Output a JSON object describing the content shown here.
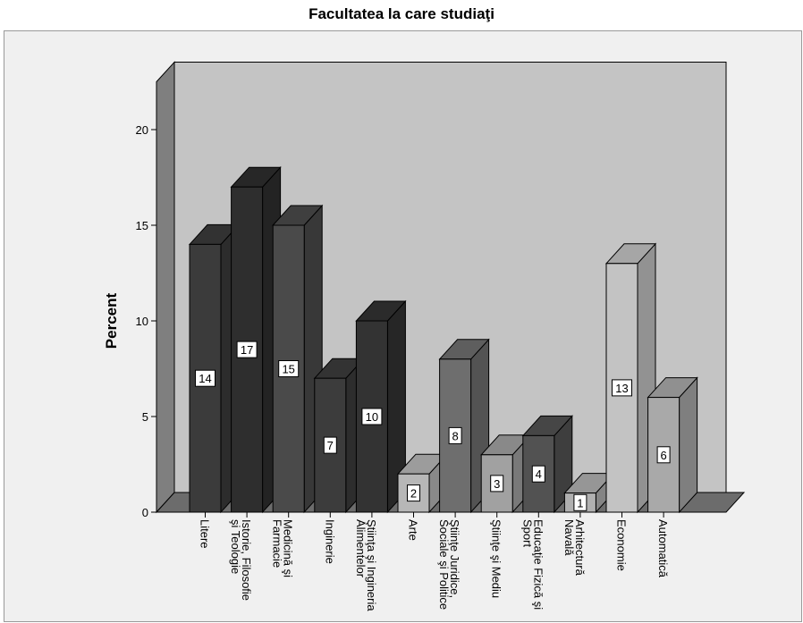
{
  "chart_data": {
    "type": "bar",
    "title": "Facultatea la care studiaţi",
    "xlabel": "",
    "ylabel": "Percent",
    "ylim": [
      0,
      20
    ],
    "yticks": [
      0,
      5,
      10,
      15,
      20
    ],
    "grid": false,
    "legend": "none",
    "categories": [
      [
        "Litere"
      ],
      [
        "Istorie, Filosofie",
        "şi Teologie"
      ],
      [
        "Medicină şi",
        "Farmacie"
      ],
      [
        "Inginerie"
      ],
      [
        "Ştiinţa şi Ingineria",
        "Alimentelor"
      ],
      [
        "Arte"
      ],
      [
        "Ştiinţe Juridice,",
        "Sociale şi Politice"
      ],
      [
        "Ştiinţe şi Mediu"
      ],
      [
        "Educaţie Fizică şi",
        "Sport"
      ],
      [
        "Arhitectură",
        "Navală"
      ],
      [
        "Economie"
      ],
      [
        "Automatică"
      ]
    ],
    "values": [
      14,
      17,
      15,
      7,
      10,
      2,
      8,
      3,
      4,
      1,
      13,
      6
    ],
    "data_labels": [
      "14",
      "17",
      "15",
      "7",
      "10",
      "2",
      "8",
      "3",
      "4",
      "1",
      "13",
      "6"
    ],
    "colors": [
      "#3b3b3b",
      "#2e2e2e",
      "#4a4a4a",
      "#3c3c3c",
      "#333333",
      "#b7b7b7",
      "#6e6e6e",
      "#a1a1a1",
      "#525252",
      "#b0b0b0",
      "#c3c3c3",
      "#a9a9a9"
    ],
    "wall_color": "#c4c4c4",
    "side_wall_color": "#7f7f7f"
  }
}
